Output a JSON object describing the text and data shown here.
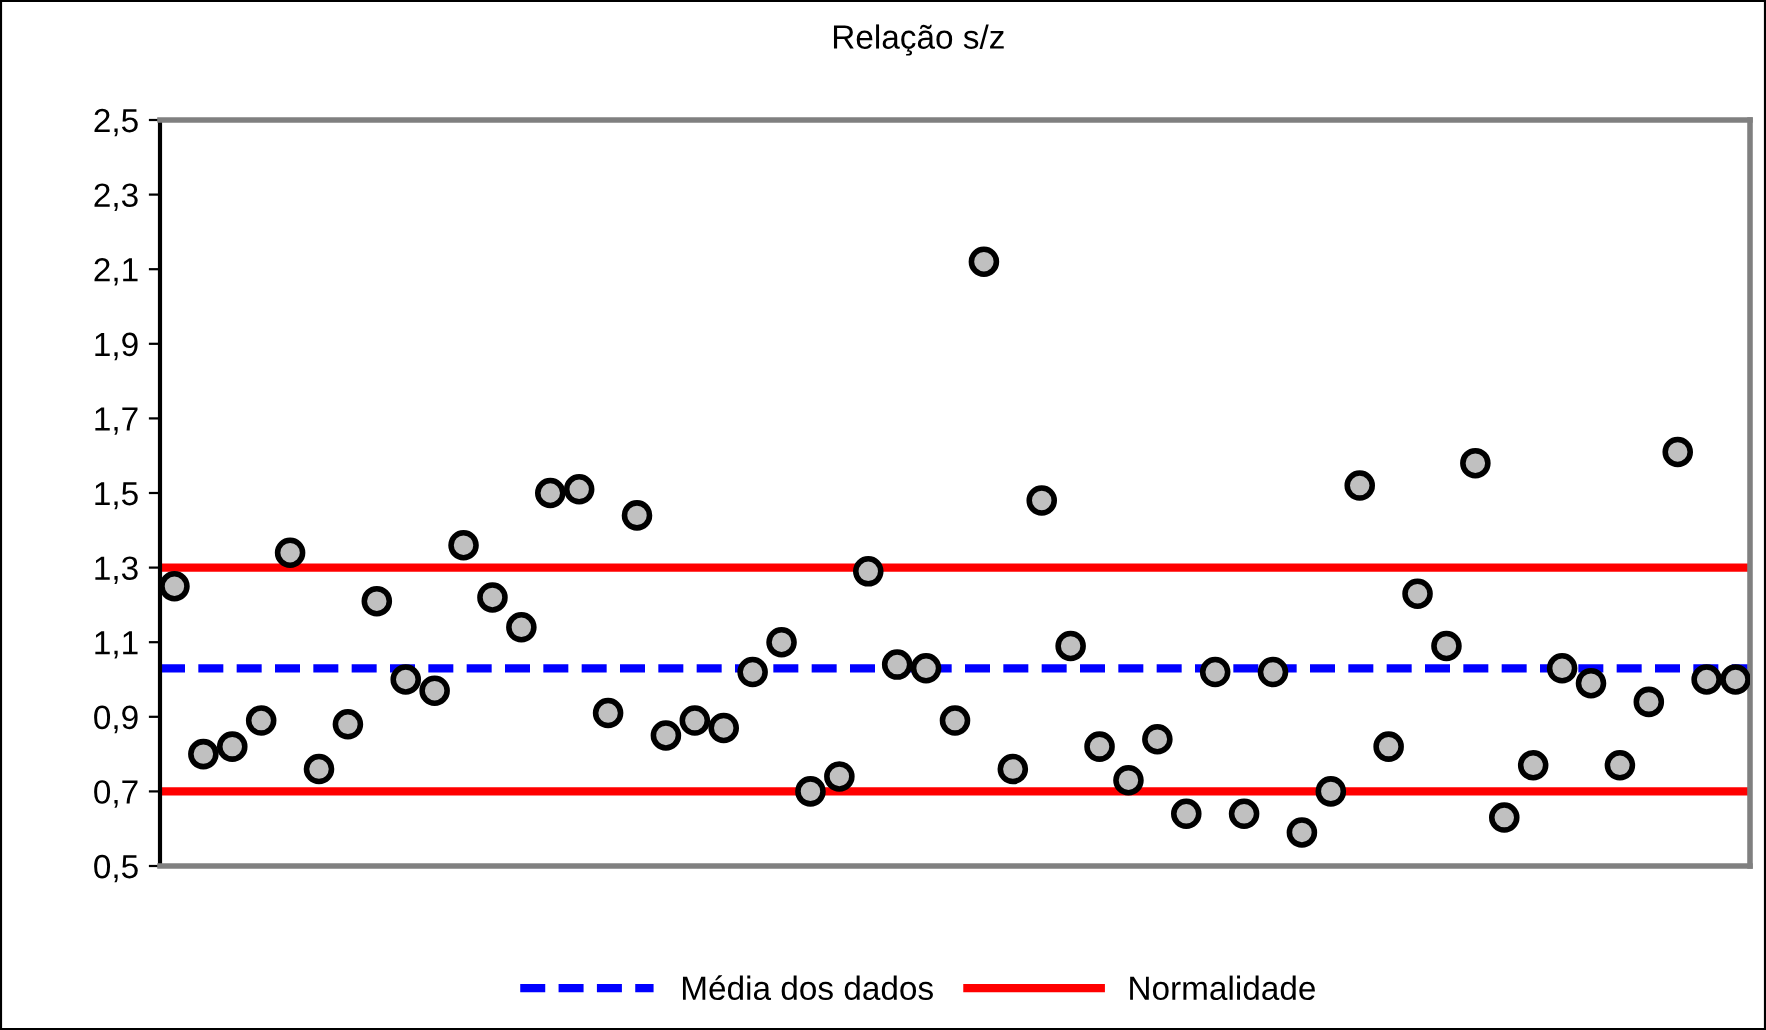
{
  "chart_data": {
    "type": "scatter",
    "title": "Relação s/z",
    "categories": [
      null,
      null,
      null,
      null,
      null,
      null,
      null,
      null,
      null,
      null,
      null,
      null,
      null,
      null,
      null,
      null,
      null,
      null,
      null,
      null,
      null,
      null,
      null,
      null,
      null,
      null,
      null,
      null,
      null,
      null,
      null,
      null,
      null,
      null,
      null,
      null,
      null,
      null,
      null,
      null,
      null,
      null,
      null,
      null,
      null,
      null,
      null,
      null,
      null,
      null,
      null,
      null,
      null,
      null,
      null
    ],
    "series": [
      {
        "color": "#c0c0c0",
        "values": [
          1.25,
          0.8,
          0.82,
          0.89,
          1.34,
          0.76,
          0.88,
          1.21,
          1.0,
          0.97,
          1.36,
          1.22,
          1.14,
          1.5,
          1.51,
          0.91,
          1.44,
          0.85,
          0.89,
          0.87,
          1.02,
          1.1,
          0.7,
          0.74,
          1.29,
          1.04,
          1.03,
          0.89,
          2.12,
          0.76,
          1.48,
          1.09,
          0.82,
          0.73,
          0.84,
          0.64,
          1.02,
          0.64,
          1.02,
          0.59,
          0.7,
          1.52,
          0.82,
          1.23,
          1.09,
          1.58,
          0.63,
          0.77,
          1.03,
          0.99,
          0.77,
          0.94,
          1.61,
          1.0,
          1.0
        ]
      }
    ],
    "marker": "circle",
    "ylim": [
      0.5,
      2.5
    ],
    "yticks": [
      {
        "value": 0.5,
        "label": "0,5"
      },
      {
        "value": 0.7,
        "label": "0,7"
      },
      {
        "value": 0.9,
        "label": "0,9"
      },
      {
        "value": 1.1,
        "label": "1,1"
      },
      {
        "value": 1.3,
        "label": "1,3"
      },
      {
        "value": 1.5,
        "label": "1,5"
      },
      {
        "value": 1.7,
        "label": "1,7"
      },
      {
        "value": 1.9,
        "label": "1,9"
      },
      {
        "value": 2.1,
        "label": "2,1"
      },
      {
        "value": 2.3,
        "label": "2,3"
      },
      {
        "value": 2.5,
        "label": "2,5"
      }
    ],
    "ref_lines": [
      {
        "axis": "y",
        "value": 1.03,
        "label": "Média dos dados",
        "color": "#0000ff",
        "line_style": "dashed"
      },
      {
        "axis": "y",
        "value": 1.3,
        "label": "Normalidade",
        "color": "#ff0000",
        "line_style": "solid"
      },
      {
        "axis": "y",
        "value": 0.7,
        "color": "#ff0000",
        "line_style": "solid"
      }
    ],
    "grid": false,
    "legend": "bottom"
  }
}
